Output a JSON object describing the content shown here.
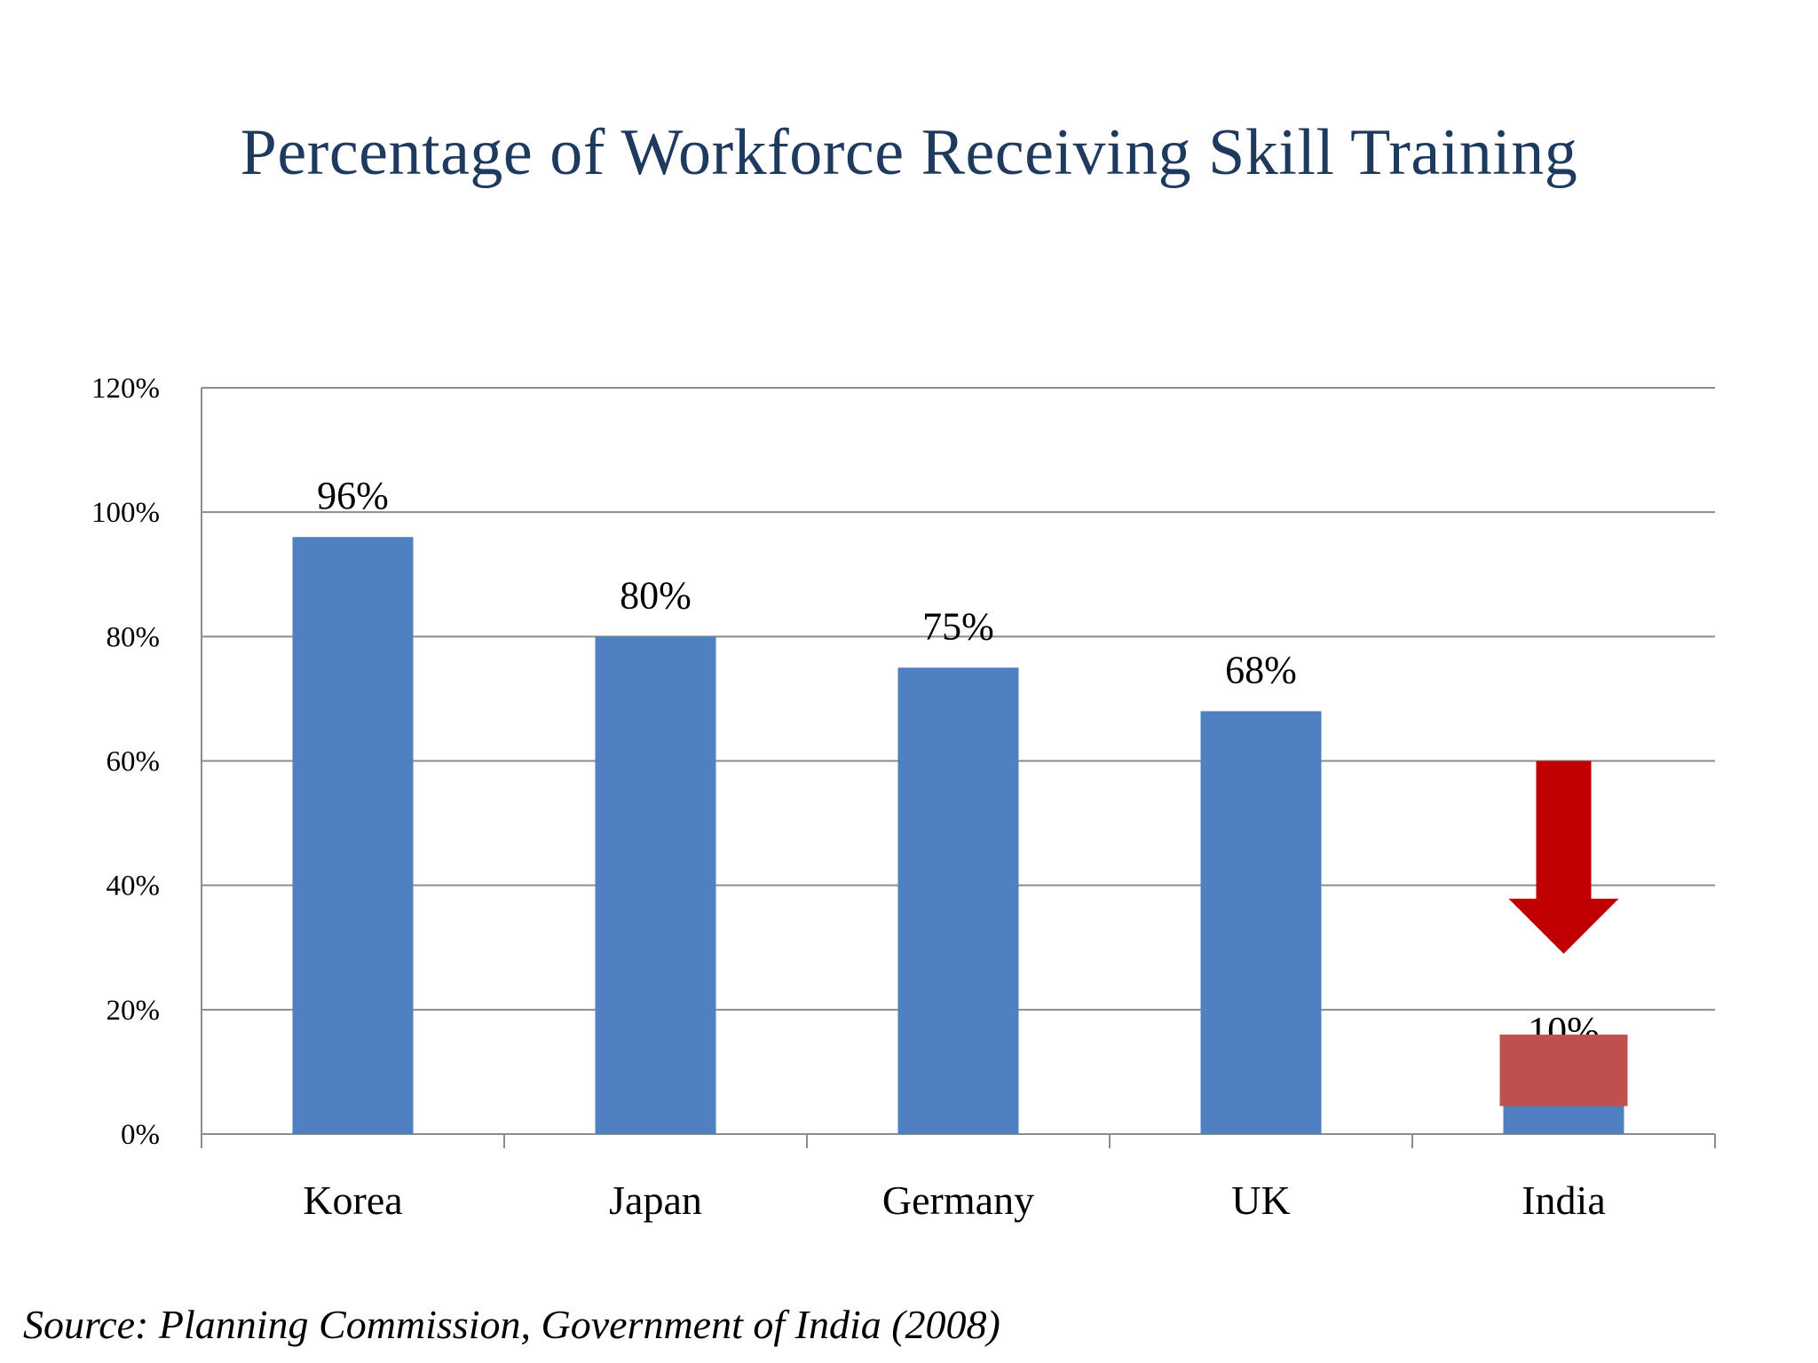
{
  "slide": {
    "title": "Percentage of Workforce Receiving Skill Training",
    "source": "Source: Planning Commission, Government of India (2008)"
  },
  "colors": {
    "bar": "#5080c0",
    "highlight_box": "#c0504d",
    "arrow": "#c00000",
    "grid": "#8c8c8c",
    "title": "#1f3a5f"
  },
  "chart_data": {
    "type": "bar",
    "title": "Percentage of Workforce Receiving Skill Training",
    "categories": [
      "Korea",
      "Japan",
      "Germany",
      "UK",
      "India"
    ],
    "values": [
      96,
      80,
      75,
      68,
      10
    ],
    "data_labels": [
      "96%",
      "80%",
      "75%",
      "68%",
      "10%"
    ],
    "y_ticks": [
      "0%",
      "20%",
      "40%",
      "60%",
      "80%",
      "100%",
      "120%"
    ],
    "ylim": [
      0,
      120
    ],
    "grid": true,
    "legend": "none",
    "annotations": [
      {
        "type": "down-arrow",
        "category": "India",
        "from_value": 60,
        "to_value": 29
      },
      {
        "type": "highlight-box",
        "category": "India",
        "from_value": 4.5,
        "to_value": 16
      }
    ]
  }
}
